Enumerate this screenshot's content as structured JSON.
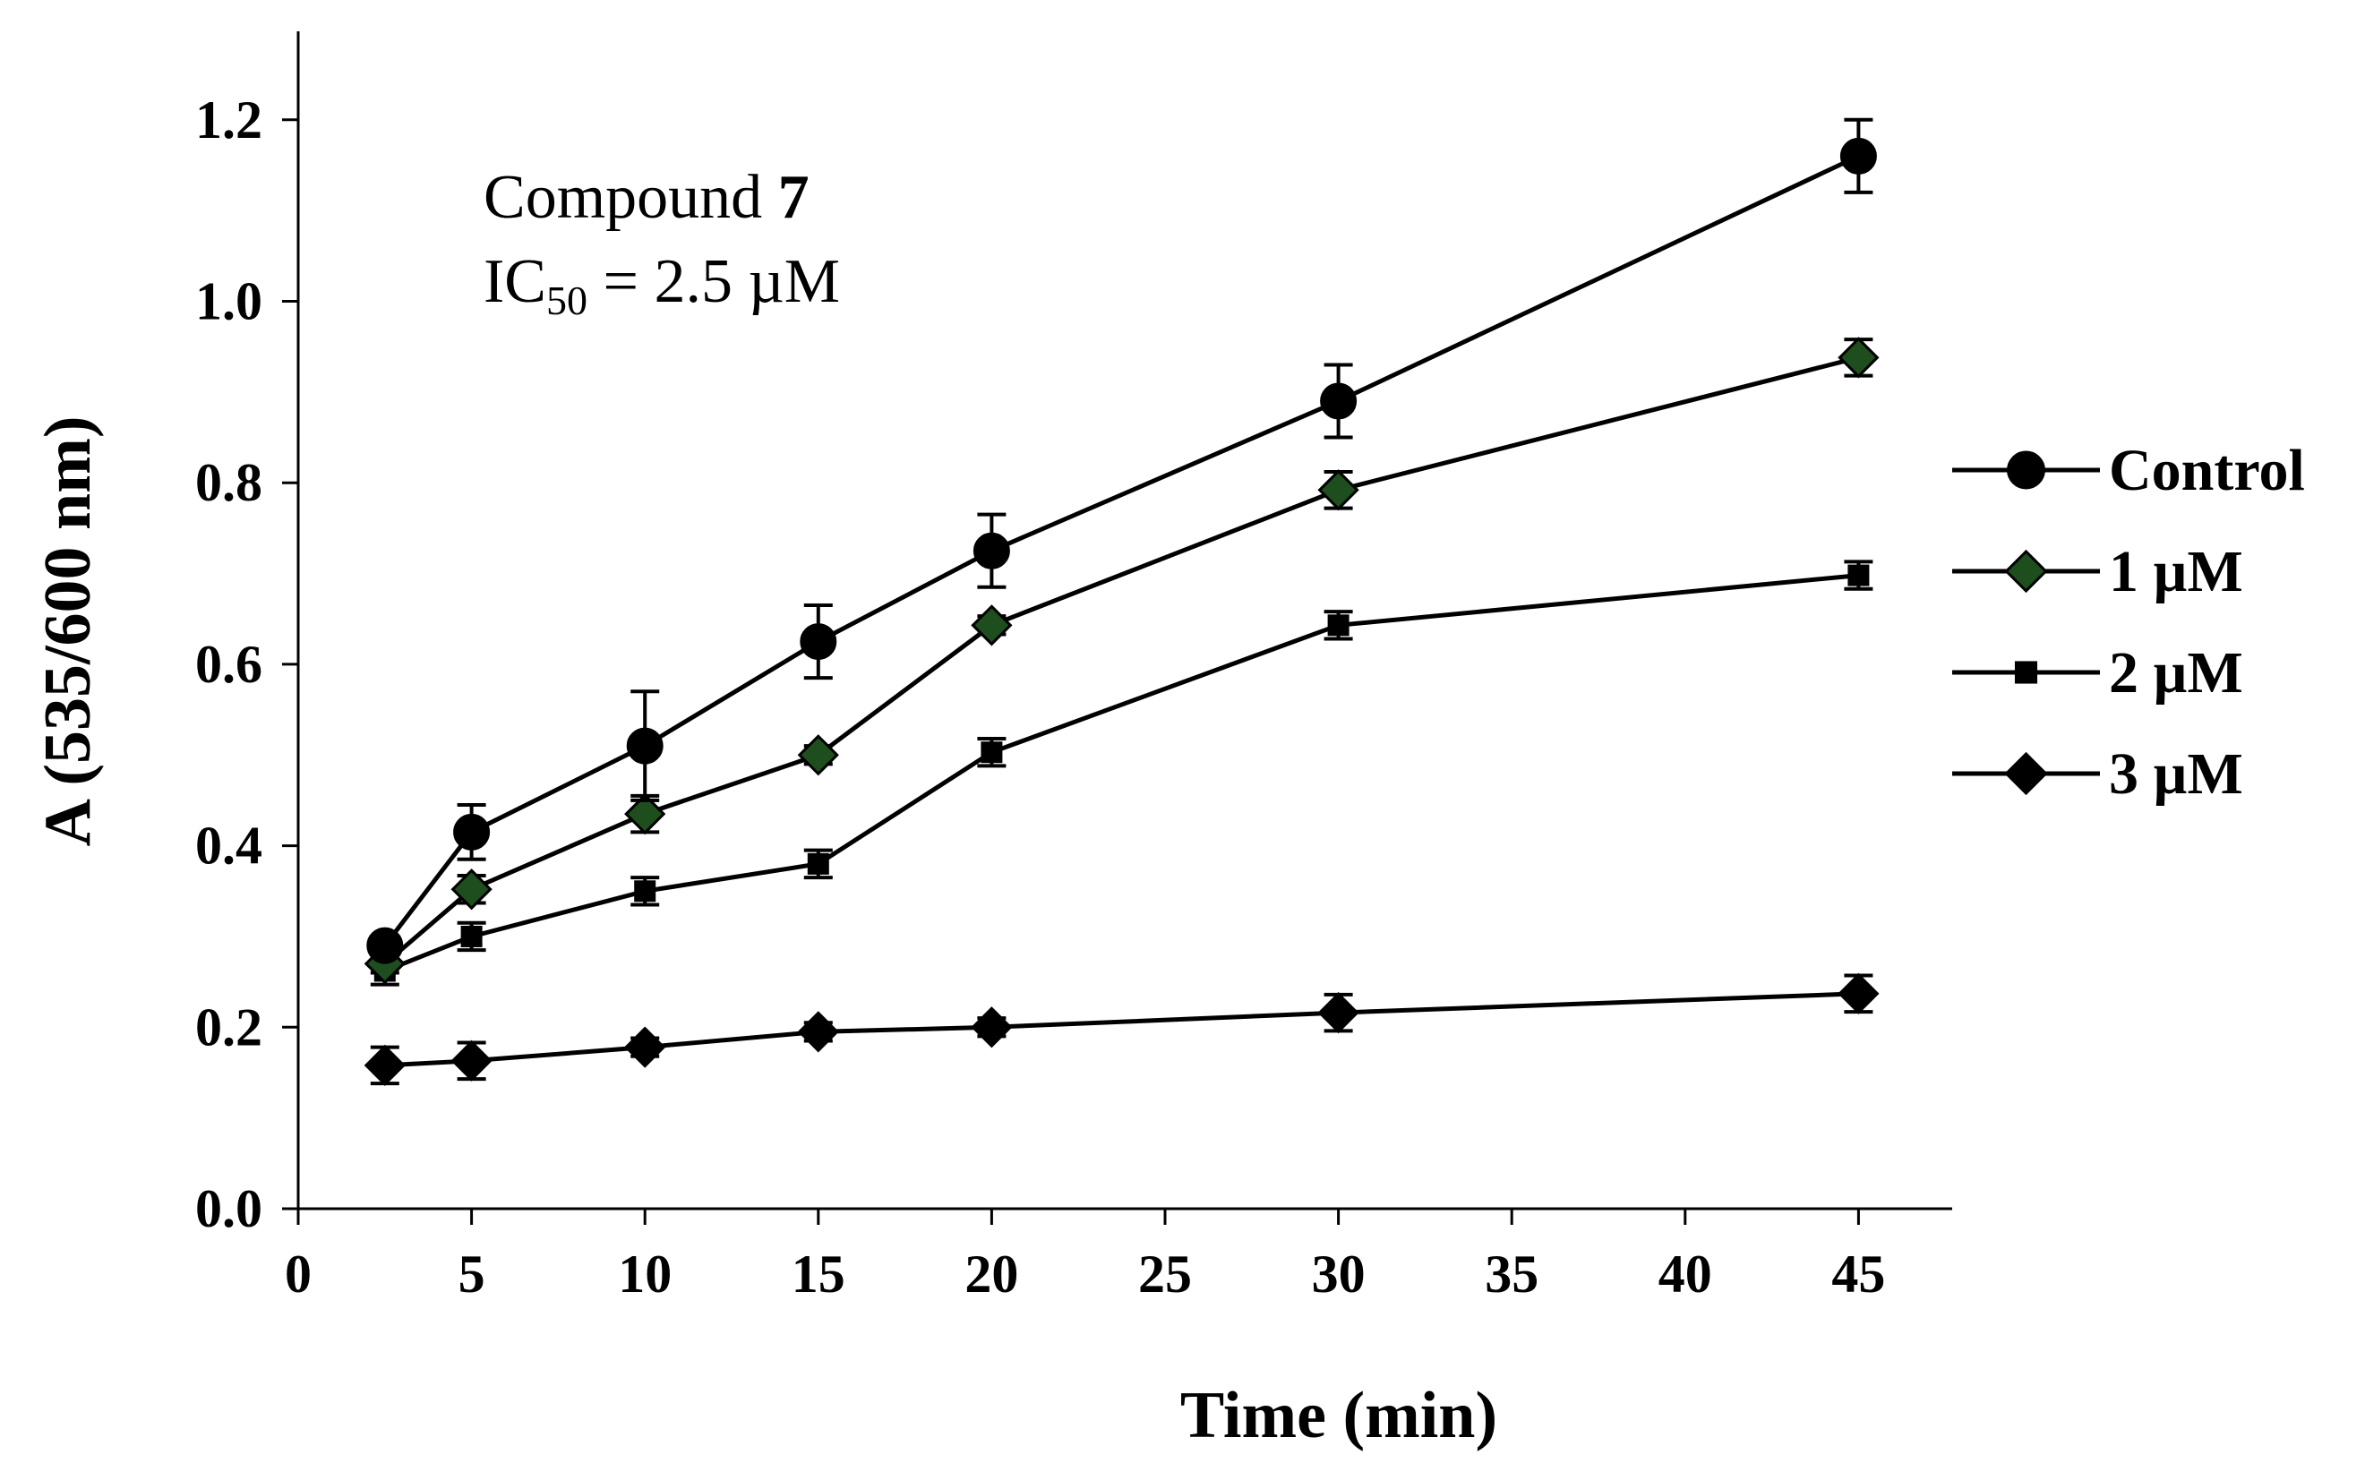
{
  "chart_data": {
    "type": "line",
    "title": "",
    "xlabel": "Time (min)",
    "ylabel": "A (535/600 nm)",
    "xlim": [
      0,
      48
    ],
    "ylim": [
      0,
      1.3
    ],
    "xticks": [
      "0",
      "5",
      "10",
      "15",
      "20",
      "25",
      "30",
      "35",
      "40",
      "45"
    ],
    "yticks": [
      "0.0",
      "0.2",
      "0.4",
      "0.6",
      "0.8",
      "1.0",
      "1.2"
    ],
    "x": [
      2.5,
      5,
      10,
      15,
      20,
      30,
      45
    ],
    "x_scale": "categorical-like: tick positions 0,5,10,15,20,25,30,35,40,45 evenly spaced",
    "annotation": {
      "compound_prefix": "Compound ",
      "compound_number": "7",
      "ic_prefix": "IC",
      "ic_subscript": "50",
      "ic_value": " = 2.5 µM"
    },
    "legend_position": "right",
    "series": [
      {
        "name": "Control",
        "marker": "circle",
        "fill": "#000000",
        "values": [
          0.29,
          0.415,
          0.51,
          0.625,
          0.725,
          0.89,
          1.16
        ],
        "errors": [
          0.01,
          0.03,
          0.06,
          0.04,
          0.04,
          0.04,
          0.04
        ]
      },
      {
        "name": "1 µM",
        "marker": "diamond",
        "fill": "#1e4d1e",
        "values": [
          0.27,
          0.352,
          0.435,
          0.5,
          0.643,
          0.792,
          0.938
        ],
        "errors": [
          0.01,
          0.015,
          0.02,
          0.01,
          0.01,
          0.02,
          0.02
        ]
      },
      {
        "name": "2 µM",
        "marker": "square",
        "fill": "#000000",
        "values": [
          0.262,
          0.3,
          0.35,
          0.38,
          0.503,
          0.643,
          0.698
        ],
        "errors": [
          0.015,
          0.015,
          0.015,
          0.015,
          0.015,
          0.015,
          0.015
        ]
      },
      {
        "name": "3 µM",
        "marker": "diamond",
        "fill": "#000000",
        "values": [
          0.158,
          0.163,
          0.178,
          0.195,
          0.2,
          0.216,
          0.237
        ],
        "errors": [
          0.02,
          0.02,
          0.01,
          0.01,
          0.01,
          0.02,
          0.02
        ]
      }
    ]
  }
}
